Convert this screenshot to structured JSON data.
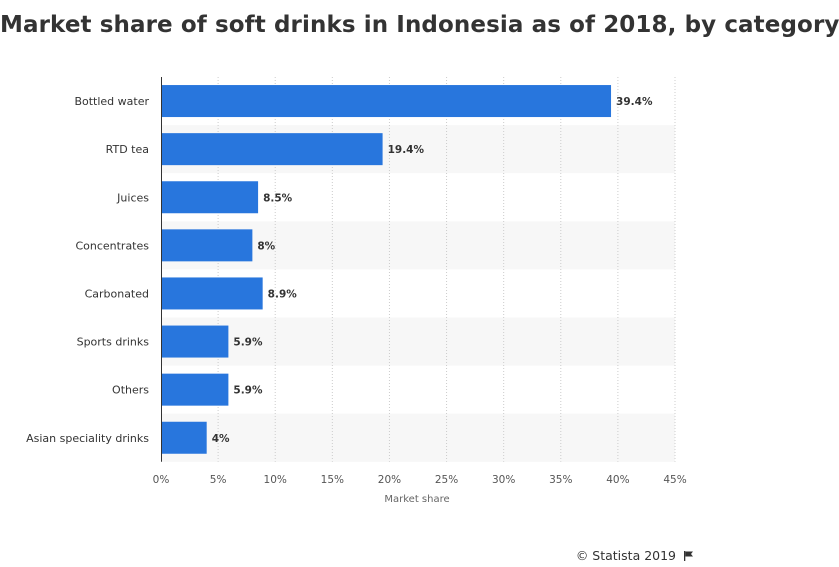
{
  "title": "Market share of soft drinks in Indonesia as of 2018, by category",
  "footer": {
    "credit": "© Statista 2019"
  },
  "colors": {
    "bar": "#2876dd",
    "band": "#f7f7f7",
    "grid": "#cccccc",
    "axis": "#333333"
  },
  "chart_data": {
    "type": "bar",
    "orientation": "horizontal",
    "categories": [
      "Bottled water",
      "RTD tea",
      "Juices",
      "Concentrates",
      "Carbonated",
      "Sports drinks",
      "Others",
      "Asian speciality drinks"
    ],
    "values": [
      39.4,
      19.4,
      8.5,
      8,
      8.9,
      5.9,
      5.9,
      4
    ],
    "value_labels": [
      "39.4%",
      "19.4%",
      "8.5%",
      "8%",
      "8.9%",
      "5.9%",
      "5.9%",
      "4%"
    ],
    "xticks": [
      "0%",
      "5%",
      "10%",
      "15%",
      "20%",
      "25%",
      "30%",
      "35%",
      "40%",
      "45%"
    ],
    "xlim": [
      0,
      45
    ],
    "xlabel": "Market share",
    "ylabel": "",
    "grid": true
  }
}
